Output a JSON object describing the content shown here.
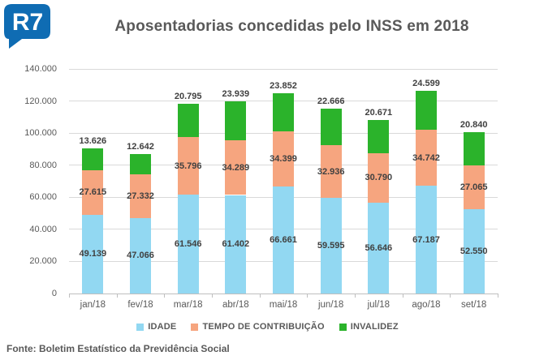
{
  "header": {
    "logo_text": "R7",
    "logo_color": "#0F6CB3"
  },
  "chart_data": {
    "type": "bar",
    "stacked": true,
    "title": "Aposentadorias concedidas pelo INSS em 2018",
    "categories": [
      "jan/18",
      "fev/18",
      "mar/18",
      "abr/18",
      "mai/18",
      "jun/18",
      "jul/18",
      "ago/18",
      "set/18"
    ],
    "series": [
      {
        "name": "IDADE",
        "color": "#92D8F2",
        "values": [
          49139,
          47066,
          61546,
          61402,
          66661,
          59595,
          56646,
          67187,
          52550
        ]
      },
      {
        "name": "TEMPO DE CONTRIBUIÇÃO",
        "color": "#F6A57F",
        "values": [
          27615,
          27332,
          35796,
          34289,
          34399,
          32936,
          30790,
          34742,
          27065
        ]
      },
      {
        "name": "INVALIDEZ",
        "color": "#2BB32B",
        "values": [
          13626,
          12642,
          20795,
          23939,
          23852,
          22666,
          20671,
          24599,
          20840
        ]
      }
    ],
    "ylim": [
      0,
      140000
    ],
    "ytick_step": 20000,
    "ytick_labels": [
      "0",
      "20.000",
      "40.000",
      "60.000",
      "80.000",
      "100.000",
      "120.000",
      "140.000"
    ],
    "grid": true,
    "legend_position": "bottom",
    "label_style": "segment-values, top segment labeled above bar",
    "number_format": "thousands-dot"
  },
  "footer": {
    "source": "Fonte: Boletim Estatístico da Previdência Social"
  }
}
